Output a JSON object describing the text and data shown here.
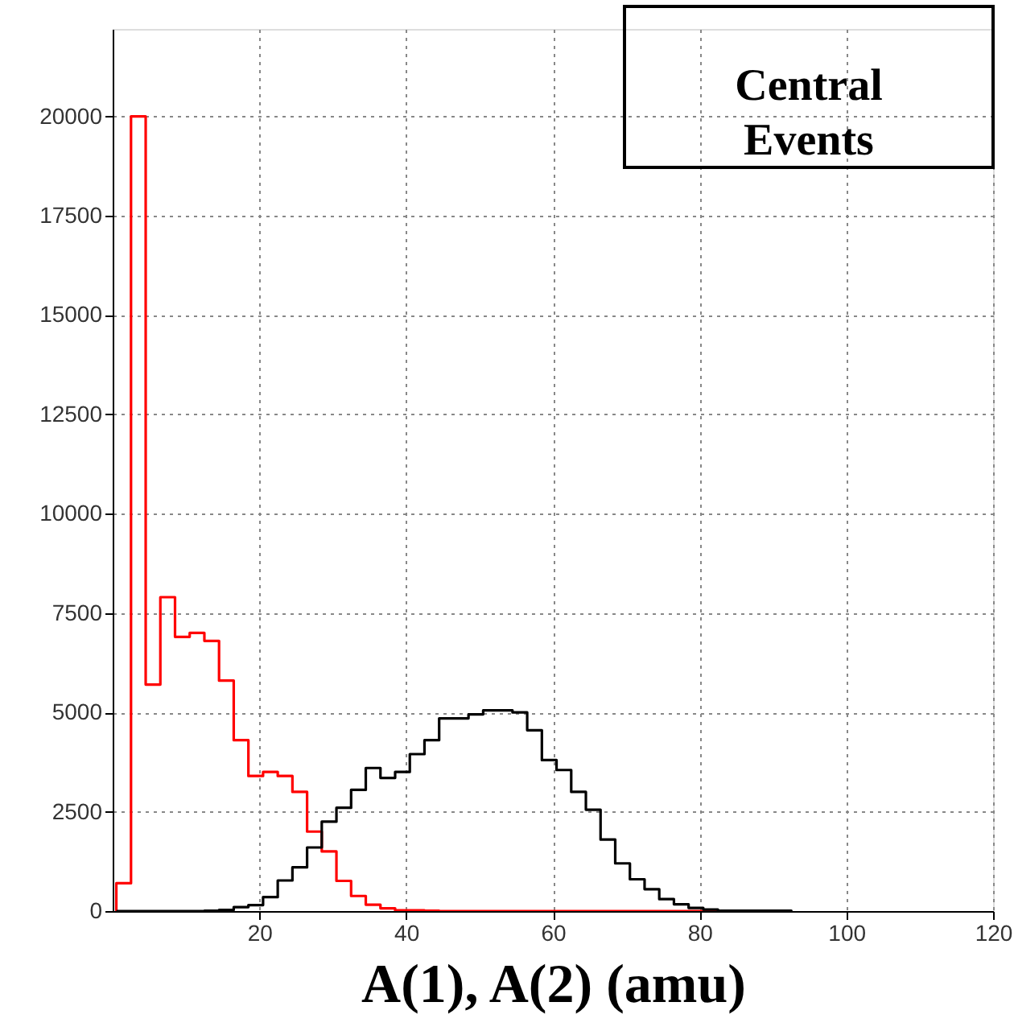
{
  "chart_data": {
    "type": "histogram",
    "xlabel": "A(1), A(2) (amu)",
    "annotations": [
      "Central Events"
    ],
    "bins": [
      0.5,
      2.5,
      4.5,
      6.5,
      8.5,
      10.5,
      12.5,
      14.5,
      16.5,
      18.5,
      20.5,
      22.5,
      24.5,
      26.5,
      28.5,
      30.5,
      32.5,
      34.5,
      36.5,
      38.5,
      40.5,
      42.5,
      44.5,
      46.5,
      48.5,
      50.5,
      52.5,
      54.5,
      56.5,
      58.5,
      60.5,
      62.5,
      64.5,
      66.5,
      68.5,
      70.5,
      72.5,
      74.5,
      76.5,
      78.5,
      80.5,
      82.5,
      84.5,
      86.5,
      88.5,
      90.5,
      92.5
    ],
    "series": [
      {
        "color": "#ff0000",
        "values": [
          700,
          20000,
          5700,
          7900,
          6900,
          7000,
          6800,
          5800,
          4300,
          3400,
          3500,
          3400,
          3000,
          2000,
          1500,
          760,
          380,
          160,
          70,
          20,
          20,
          10,
          0,
          0,
          0,
          0,
          0,
          0,
          0,
          0,
          0,
          0,
          0,
          0,
          0,
          0,
          0,
          0,
          0,
          0,
          0,
          0,
          0,
          0,
          0,
          0
        ]
      },
      {
        "color": "#000000",
        "values": [
          0,
          0,
          0,
          0,
          0,
          0,
          10,
          30,
          100,
          150,
          350,
          770,
          1100,
          1600,
          2250,
          2600,
          3050,
          3600,
          3350,
          3500,
          3950,
          4300,
          4850,
          4850,
          4950,
          5050,
          5050,
          5000,
          4550,
          3800,
          3550,
          3000,
          2550,
          1800,
          1200,
          800,
          550,
          300,
          170,
          80,
          40,
          10,
          10,
          10,
          10,
          10
        ]
      }
    ],
    "xlim": [
      0,
      120
    ],
    "xticks": [
      20,
      40,
      60,
      80,
      100,
      120
    ],
    "ylim": [
      0,
      22200
    ],
    "yticks": [
      0,
      2500,
      5000,
      7500,
      10000,
      12500,
      15000,
      17500,
      20000
    ],
    "grid": true
  }
}
